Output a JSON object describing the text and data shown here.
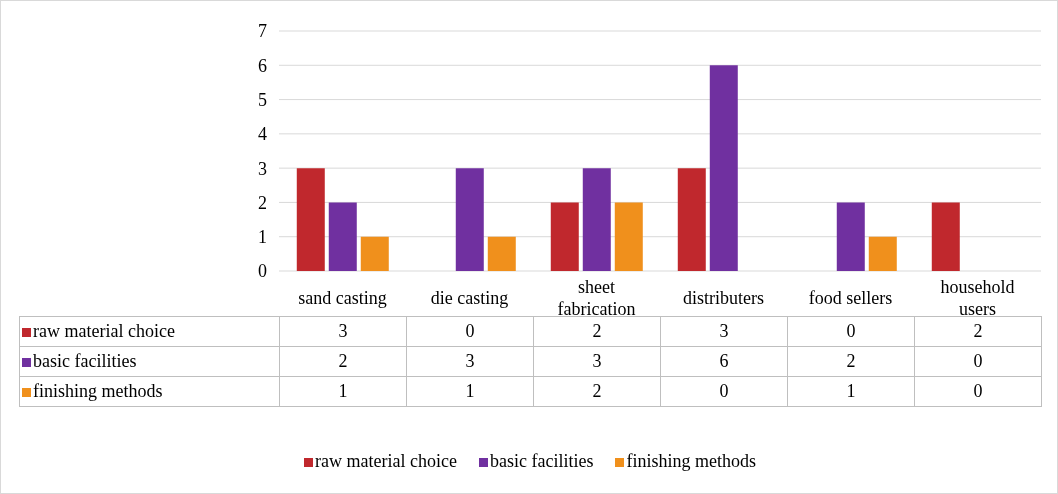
{
  "chart_data": {
    "type": "bar",
    "categories": [
      "sand casting",
      "die casting",
      "sheet fabrication",
      "distributers",
      "food sellers",
      "household users"
    ],
    "series": [
      {
        "name": "raw material choice",
        "color": "#c0282d",
        "values": [
          3,
          0,
          2,
          3,
          0,
          2
        ]
      },
      {
        "name": "basic facilities",
        "color": "#7030a0",
        "values": [
          2,
          3,
          3,
          6,
          2,
          0
        ]
      },
      {
        "name": "finishing methods",
        "color": "#f0901c",
        "values": [
          1,
          1,
          2,
          0,
          1,
          0
        ]
      }
    ],
    "ylim": [
      0,
      7
    ],
    "yticks": [
      0,
      1,
      2,
      3,
      4,
      5,
      6,
      7
    ],
    "grid": "y",
    "legend": "bottom",
    "data_labels": true
  }
}
